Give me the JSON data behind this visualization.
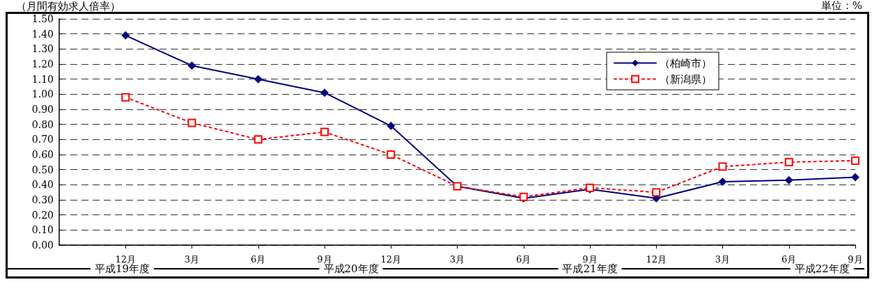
{
  "chart_data": {
    "type": "line",
    "title": "（月間有効求人倍率）",
    "annotations": [
      "単位：%",
      "平成19年度",
      "平成20年度",
      "平成21年度",
      "平成22年度"
    ],
    "categories": [
      "12月",
      "3月",
      "6月",
      "9月",
      "12月",
      "3月",
      "6月",
      "9月",
      "12月",
      "3月",
      "6月",
      "9月"
    ],
    "series": [
      {
        "name": "（柏崎市）",
        "color": "#000080",
        "marker": "diamond",
        "line_style": "solid",
        "values": [
          1.39,
          1.19,
          1.1,
          1.01,
          0.79,
          0.39,
          0.31,
          0.37,
          0.31,
          0.42,
          0.43,
          0.45
        ]
      },
      {
        "name": "（新潟県）",
        "color": "#ff0000",
        "marker": "square",
        "line_style": "dotted",
        "values": [
          0.98,
          0.81,
          0.7,
          0.75,
          0.6,
          0.39,
          0.32,
          0.38,
          0.35,
          0.52,
          0.55,
          0.56
        ]
      }
    ],
    "ylim": [
      0,
      1.5
    ],
    "yticks": [
      {
        "value": 0,
        "label": "0.00"
      },
      {
        "value": 0.1,
        "label": "0.10"
      },
      {
        "value": 0.2,
        "label": "0.20"
      },
      {
        "value": 0.3,
        "label": "0.30"
      },
      {
        "value": 0.4,
        "label": "0.40"
      },
      {
        "value": 0.5,
        "label": "0.50"
      },
      {
        "value": 0.6,
        "label": "0.60"
      },
      {
        "value": 0.7,
        "label": "0.70"
      },
      {
        "value": 0.8,
        "label": "0.80"
      },
      {
        "value": 0.9,
        "label": "0.90"
      },
      {
        "value": 1.0,
        "label": "1.00"
      },
      {
        "value": 1.1,
        "label": "1.10"
      },
      {
        "value": 1.2,
        "label": "1.20"
      },
      {
        "value": 1.3,
        "label": "1.30"
      },
      {
        "value": 1.4,
        "label": "1.40"
      },
      {
        "value": 1.5,
        "label": "1.50"
      }
    ],
    "grid": "y",
    "legend": "top right"
  }
}
